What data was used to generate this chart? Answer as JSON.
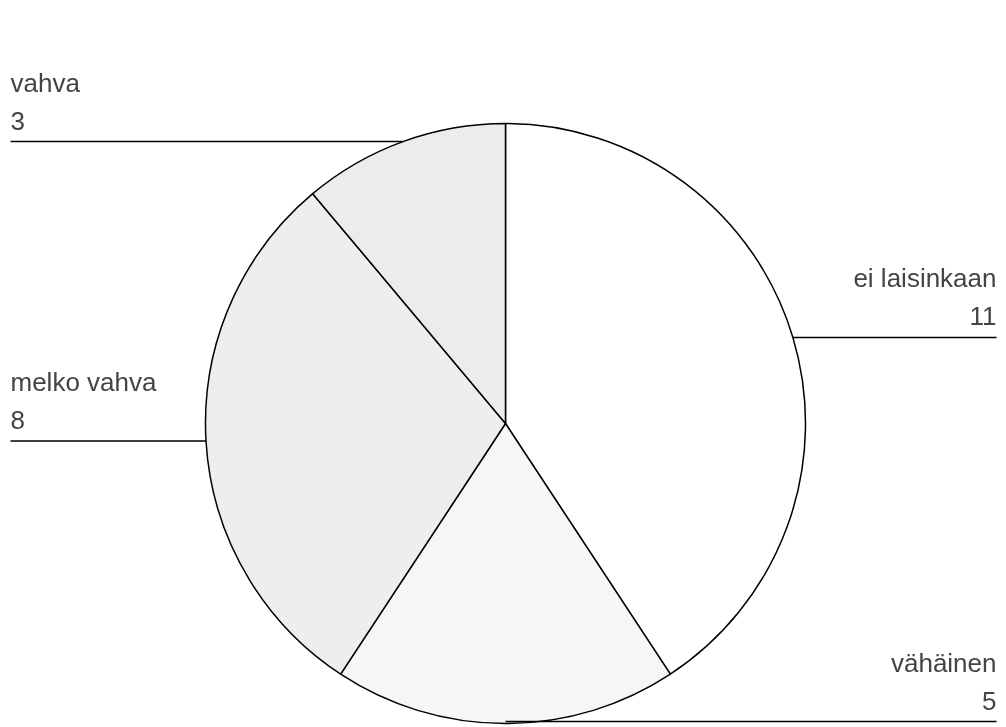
{
  "chart_data": {
    "type": "pie",
    "categories": [
      "ei laisinkaan",
      "vähäinen",
      "melko vahva",
      "vahva"
    ],
    "values": [
      11,
      5,
      8,
      3
    ],
    "colors": [
      "#ffffff",
      "#f6f6f6",
      "#eeeeee",
      "#ececec"
    ],
    "data_labels": true
  }
}
